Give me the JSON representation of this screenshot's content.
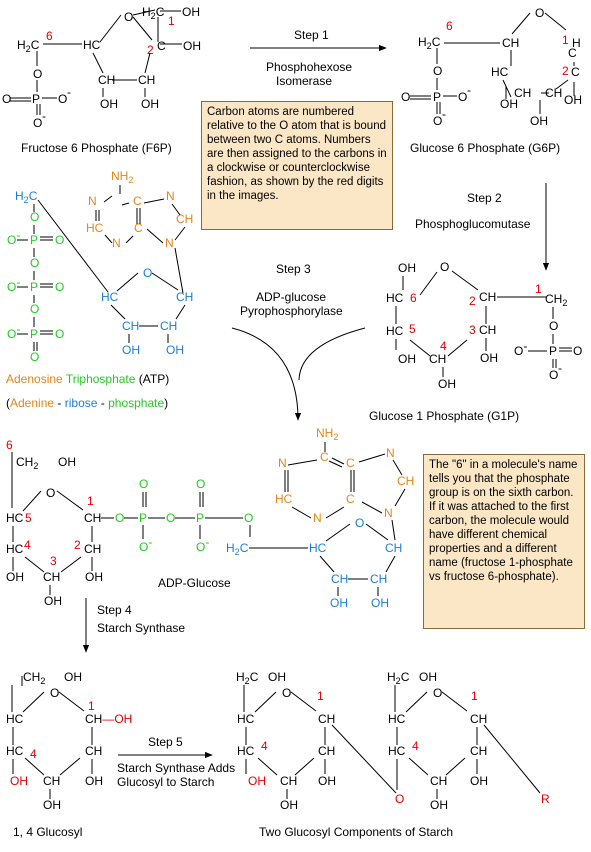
{
  "steps": {
    "s1": {
      "label": "Step 1",
      "enzyme1": "Phosphohexose",
      "enzyme2": "Isomerase"
    },
    "s2": {
      "label": "Step 2",
      "enzyme": "Phosphoglucomutase"
    },
    "s3": {
      "label": "Step 3",
      "enzyme1": "ADP-glucose",
      "enzyme2": "Pyrophosphorylase"
    },
    "s4": {
      "label": "Step 4",
      "enzyme": "Starch Synthase"
    },
    "s5": {
      "label": "Step 5",
      "enzyme1": "Starch Synthase Adds",
      "enzyme2": "Glucosyl to Starch"
    }
  },
  "captions": {
    "f6p": "Fructose 6 Phosphate (F6P)",
    "g6p": "Glucose 6 Phosphate (G6P)",
    "g1p": "Glucose 1 Phosphate (G1P)",
    "adpg": "ADP-Glucose",
    "gl14": "1, 4 Glucosyl",
    "starch": "Two Glucosyl Components of Starch"
  },
  "atp": {
    "adenosine": "Adenosine",
    "triphosphate": "Triphosphate",
    "abbr": "(ATP)",
    "open": "(",
    "adenine": "Adenine",
    "dash": "-",
    "ribose": "ribose",
    "phosphate": "phosphate",
    "close": ")"
  },
  "notes": {
    "numbering": "Carbon atoms are numbered relative to the O atom that is bound between two C atoms. Numbers are then assigned to the carbons in a clockwise or counterclockwise fashion, as shown by the red digits in the images.",
    "six": "The \"6\" in a molecule's name tells you that the phosphate group  is on the sixth carbon. If it was attached to the first carbon, the molecule would have different chemical properties and a different name (fructose 1-phosphate vs fructose 6-phosphate)."
  },
  "atoms": {
    "C": "C",
    "O": "O",
    "P": "P",
    "N": "N",
    "R": "R",
    "H": "H",
    "HC": "HC",
    "CH": "CH",
    "OH": "OH",
    "CH2": "CH",
    "CH2b": "C",
    "H2C": "H",
    "Ominus": "O",
    "minus": "-",
    "sub2": "2",
    "NH": "NH",
    "H2": "2"
  },
  "digits": {
    "d1": "1",
    "d2": "2",
    "d3": "3",
    "d4": "4",
    "d5": "5",
    "d6": "6"
  },
  "colors": {
    "red": "#e60000",
    "orange": "#e8841a",
    "blue": "#1a7fd6",
    "green": "#22cc22",
    "note_bg": "#fbe7c6"
  }
}
